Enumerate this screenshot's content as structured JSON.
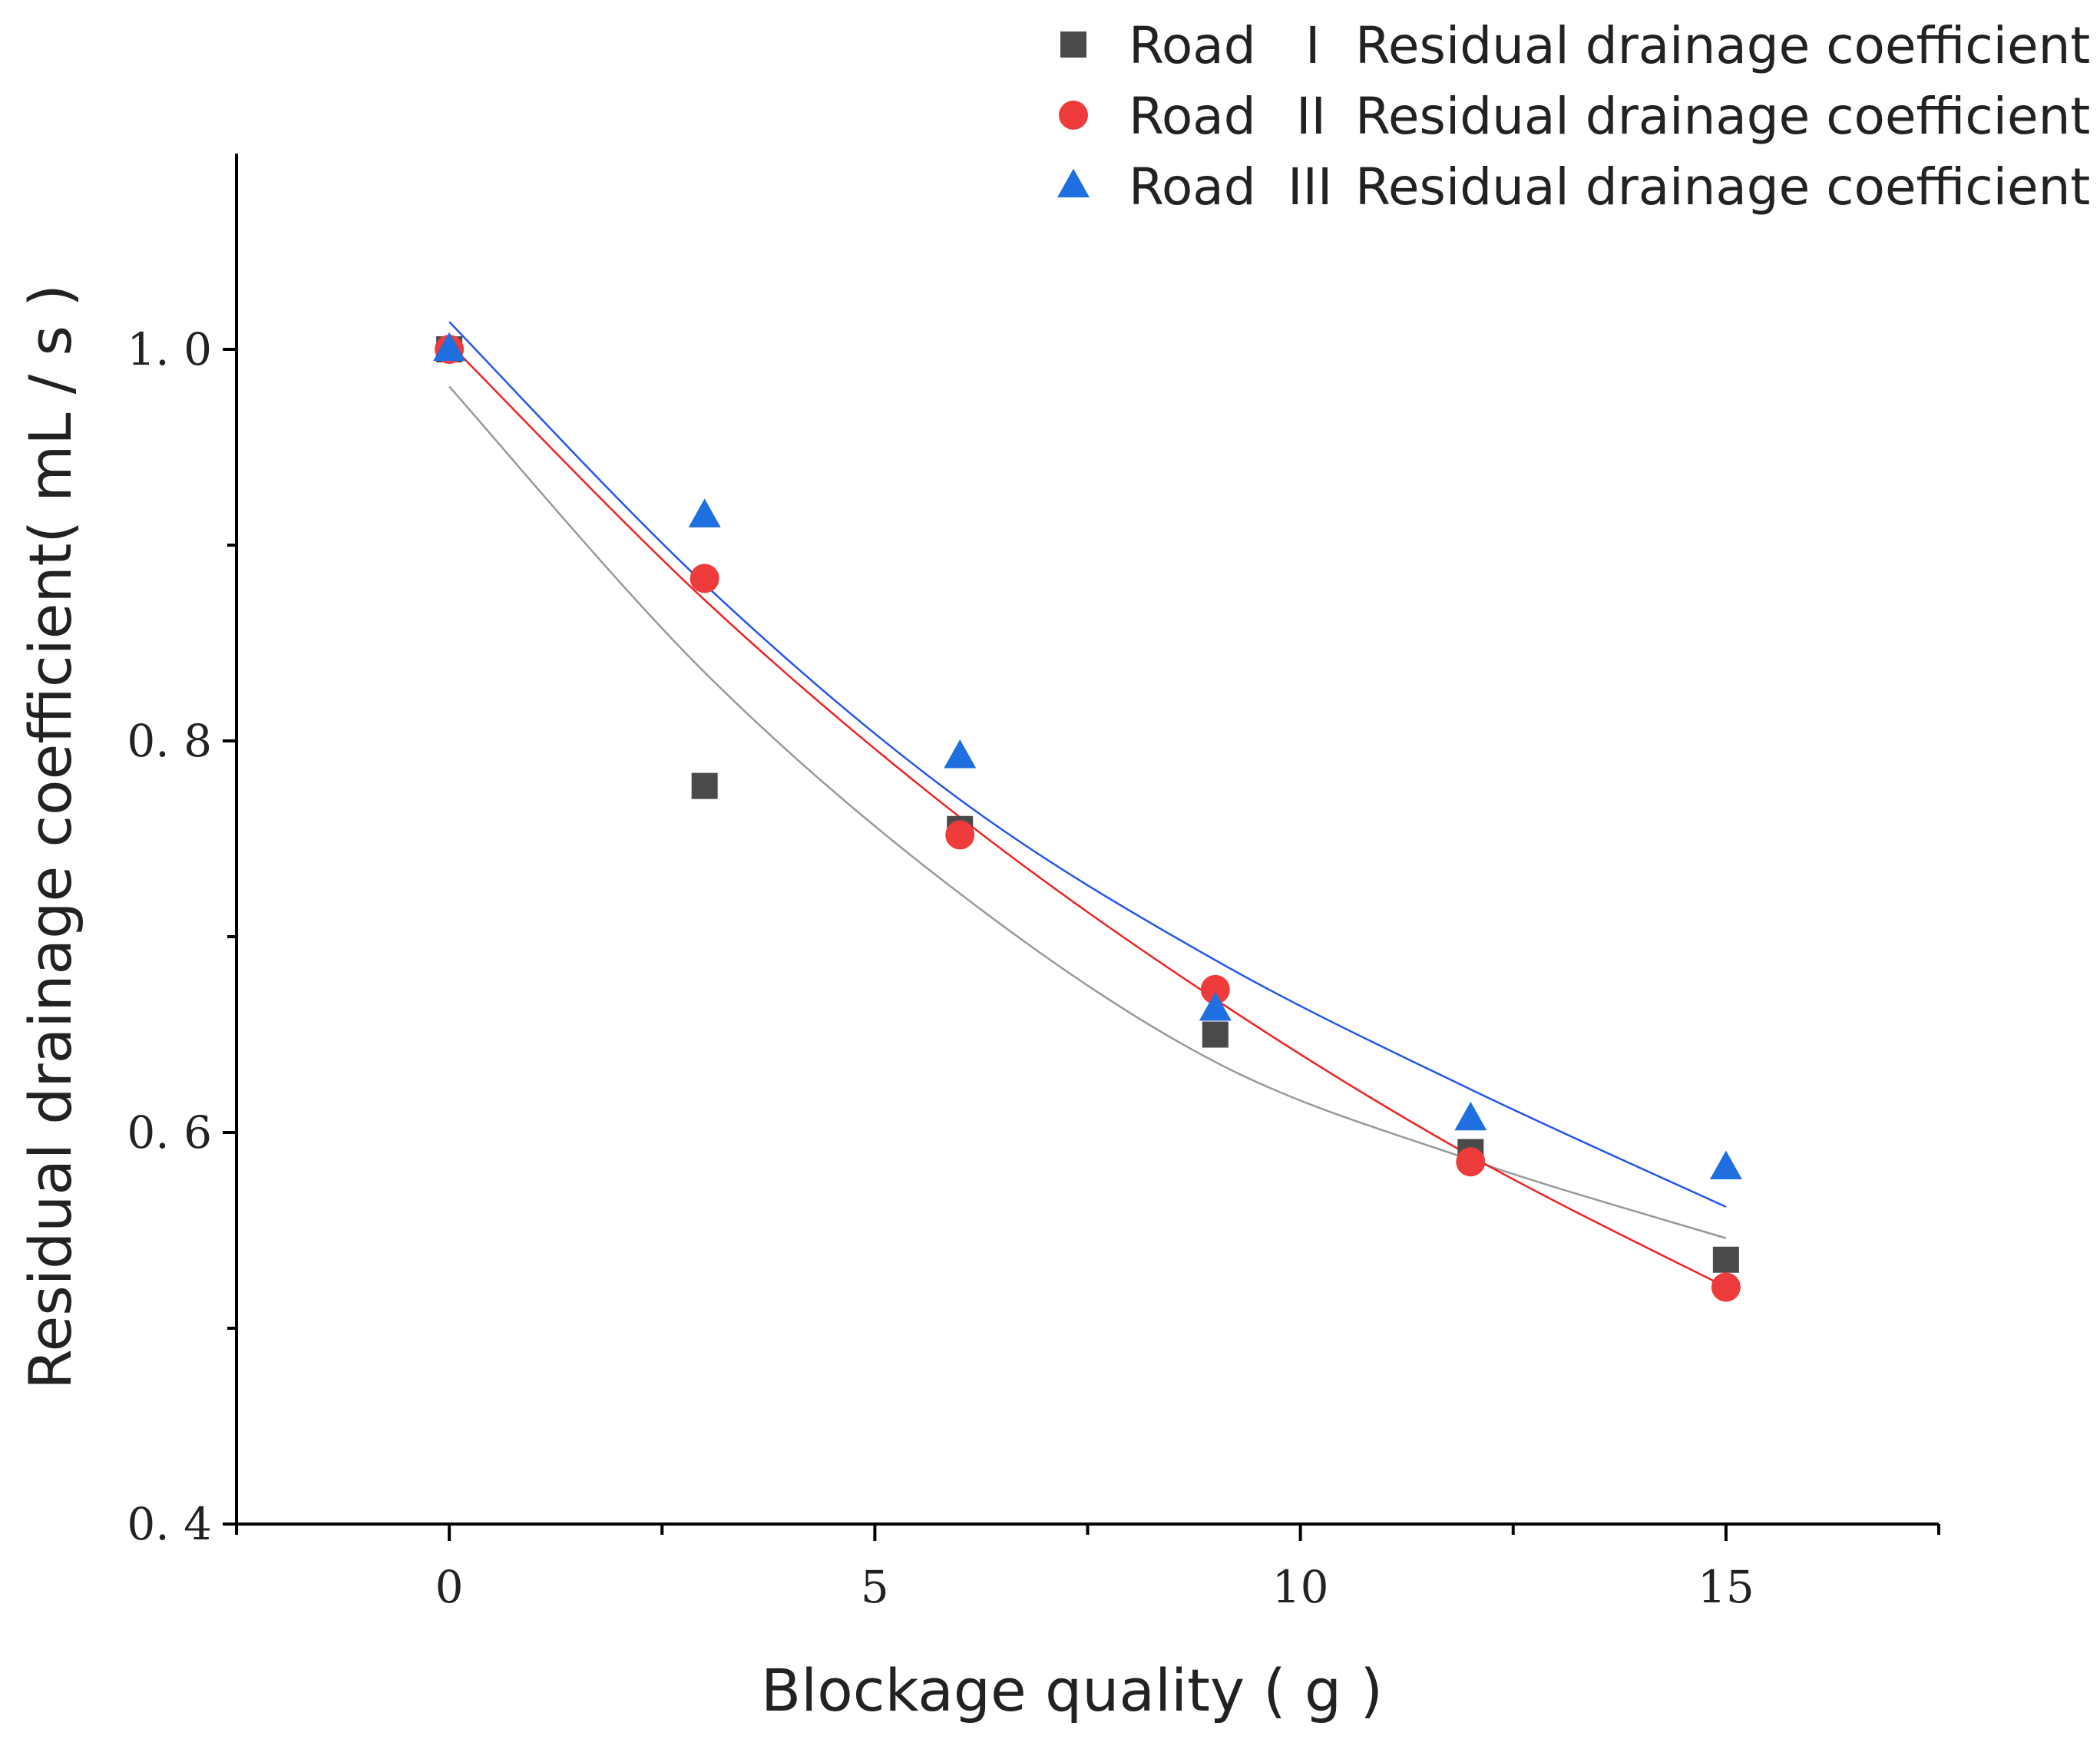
{
  "chart_data": {
    "type": "scatter",
    "title": "",
    "xlabel": "Blockage quality ( g )",
    "ylabel": "Residual drainage coefficient( mL / s )",
    "xlim": [
      -2.5,
      17.5
    ],
    "ylim": [
      0.4,
      1.1
    ],
    "x_ticks": [
      0,
      5,
      10,
      15
    ],
    "x_tick_labels": [
      "0",
      "5",
      "10",
      "15"
    ],
    "y_ticks": [
      0.4,
      0.6,
      0.8,
      1.0
    ],
    "y_tick_labels": [
      "0. 4",
      "0. 6",
      "0. 8",
      "1. 0"
    ],
    "legend_position": "top-right",
    "grid": false,
    "x": [
      0,
      3,
      6,
      9,
      12,
      15
    ],
    "series": [
      {
        "name": "Road I Residual drainage coefficient",
        "legend_road": "Road",
        "legend_numeral": "I",
        "legend_desc": "Residual drainage coefficient",
        "marker": "square",
        "marker_color": "#4a4a4a",
        "line_color": "#999999",
        "values": [
          1.0,
          0.777,
          0.755,
          0.65,
          0.59,
          0.535
        ],
        "fit": [
          0.981,
          0.835,
          0.722,
          0.636,
          0.586,
          0.546
        ]
      },
      {
        "name": "Road II Residual drainage coefficient",
        "legend_road": "Road",
        "legend_numeral": "II",
        "legend_desc": "Residual drainage coefficient",
        "marker": "circle",
        "marker_color": "#ee3b3b",
        "line_color": "#ee2222",
        "values": [
          1.0,
          0.883,
          0.752,
          0.673,
          0.585,
          0.521
        ],
        "fit": [
          1.003,
          0.872,
          0.761,
          0.668,
          0.588,
          0.521
        ]
      },
      {
        "name": "Road III Residual drainage coefficient",
        "legend_road": "Road",
        "legend_numeral": "III",
        "legend_desc": "Residual drainage coefficient",
        "marker": "triangle",
        "marker_color": "#1f6fe0",
        "line_color": "#2255ee",
        "values": [
          1.0,
          0.915,
          0.792,
          0.663,
          0.607,
          0.582
        ],
        "fit": [
          1.014,
          0.88,
          0.77,
          0.688,
          0.622,
          0.562
        ]
      }
    ]
  }
}
